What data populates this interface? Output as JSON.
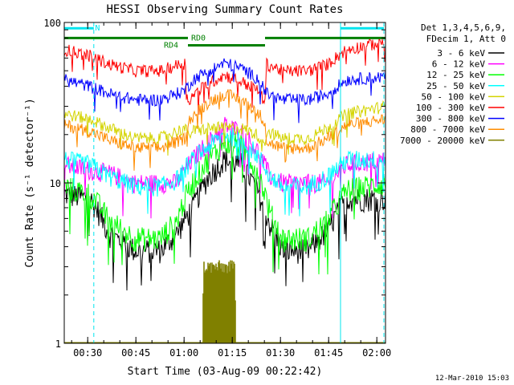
{
  "chart_data": {
    "type": "line",
    "title": "HESSI Observing Summary Count Rates",
    "xlabel": "Start Time (03-Aug-09 00:22:42)",
    "ylabel": "Count Rate (s⁻¹ detector⁻¹)",
    "y_scale": "log",
    "ylim": [
      1,
      100
    ],
    "xlim_minutes": [
      0,
      100
    ],
    "x_ticks": [
      "00:30",
      "00:45",
      "01:00",
      "01:15",
      "01:30",
      "01:45",
      "02:00"
    ],
    "x_tick_minutes": [
      7.3,
      22.3,
      37.3,
      52.3,
      67.3,
      82.3,
      97.3
    ],
    "y_ticks": [
      "1",
      "10",
      "100"
    ],
    "y_tick_values": [
      1,
      10,
      100
    ],
    "grid": false,
    "legend_position": "right",
    "legend_header": [
      "Det 1,3,4,5,6,9,",
      "FDecim 1, Att 0"
    ],
    "footer_date": "12-Mar-2010 15:03",
    "annotations": {
      "n_label": "N",
      "rd4_label": "RD4",
      "rd0_label": "RD0",
      "night_bars_minutes": [
        [
          0,
          9.2
        ],
        [
          86,
          99.5
        ]
      ],
      "night_label_minute": 9.6,
      "night_level": 92,
      "decimation_bars_minutes": [
        [
          0,
          38.5
        ],
        [
          38.5,
          62.5
        ],
        [
          62.5,
          100
        ]
      ],
      "decimation_levels": [
        80,
        72,
        80
      ],
      "rd4_label_minute": 31,
      "rd0_label_minute": 39.5,
      "saa_lines_minutes": [
        0,
        86
      ],
      "night_lines_minutes": [
        9.2,
        99.5
      ]
    },
    "colors": {
      "night": "#00e5ee",
      "decimation": "#008000",
      "axis": "#000000"
    },
    "series": [
      {
        "name": "3 - 6 keV",
        "color": "#000000",
        "points": [
          [
            0,
            8.5
          ],
          [
            8,
            8
          ],
          [
            14,
            4.8
          ],
          [
            22,
            3.8
          ],
          [
            30,
            3.8
          ],
          [
            35,
            4.8
          ],
          [
            40,
            7
          ],
          [
            45,
            11
          ],
          [
            50,
            14
          ],
          [
            55,
            13
          ],
          [
            60,
            9
          ],
          [
            64,
            5.5
          ],
          [
            68,
            3.8
          ],
          [
            76,
            3.8
          ],
          [
            82,
            5
          ],
          [
            88,
            8
          ],
          [
            100,
            8
          ]
        ]
      },
      {
        "name": "6 - 12 keV",
        "color": "#ff00ff",
        "points": [
          [
            0,
            13
          ],
          [
            8,
            12
          ],
          [
            14,
            11.5
          ],
          [
            22,
            10
          ],
          [
            30,
            10
          ],
          [
            35,
            10
          ],
          [
            40,
            14
          ],
          [
            45,
            18
          ],
          [
            50,
            23
          ],
          [
            55,
            21
          ],
          [
            60,
            16
          ],
          [
            64,
            11
          ],
          [
            68,
            10
          ],
          [
            76,
            10
          ],
          [
            82,
            10
          ],
          [
            88,
            13
          ],
          [
            100,
            14
          ]
        ]
      },
      {
        "name": "12 - 25 keV",
        "color": "#00ff00",
        "points": [
          [
            0,
            9.5
          ],
          [
            8,
            8.5
          ],
          [
            14,
            5.8
          ],
          [
            22,
            4.5
          ],
          [
            30,
            4.5
          ],
          [
            35,
            5.8
          ],
          [
            40,
            10
          ],
          [
            45,
            14
          ],
          [
            50,
            18
          ],
          [
            55,
            17
          ],
          [
            60,
            12
          ],
          [
            64,
            6.5
          ],
          [
            68,
            4.5
          ],
          [
            76,
            4.5
          ],
          [
            82,
            5.8
          ],
          [
            88,
            9
          ],
          [
            100,
            10
          ]
        ]
      },
      {
        "name": "25 - 50 keV",
        "color": "#00ffff",
        "points": [
          [
            0,
            14
          ],
          [
            8,
            13
          ],
          [
            14,
            11
          ],
          [
            22,
            9.5
          ],
          [
            30,
            9.5
          ],
          [
            35,
            10.5
          ],
          [
            40,
            14
          ],
          [
            45,
            17
          ],
          [
            50,
            20
          ],
          [
            55,
            19
          ],
          [
            60,
            15
          ],
          [
            64,
            11
          ],
          [
            68,
            9.5
          ],
          [
            76,
            9.5
          ],
          [
            82,
            11
          ],
          [
            88,
            14
          ],
          [
            100,
            14
          ]
        ]
      },
      {
        "name": "50 - 100 keV",
        "color": "#d4d400",
        "points": [
          [
            0,
            27
          ],
          [
            8,
            25
          ],
          [
            14,
            22
          ],
          [
            22,
            19
          ],
          [
            30,
            19
          ],
          [
            35,
            21
          ],
          [
            37.5,
            22
          ],
          [
            38.5,
            20
          ],
          [
            40,
            21
          ],
          [
            45,
            22
          ],
          [
            50,
            22
          ],
          [
            55,
            22
          ],
          [
            60,
            20
          ],
          [
            62.5,
            18
          ],
          [
            63,
            21
          ],
          [
            68,
            19
          ],
          [
            76,
            19
          ],
          [
            82,
            22
          ],
          [
            88,
            27
          ],
          [
            100,
            30
          ]
        ]
      },
      {
        "name": "100 - 300 keV",
        "color": "#ff0000",
        "points": [
          [
            0,
            68
          ],
          [
            8,
            62
          ],
          [
            14,
            55
          ],
          [
            22,
            50
          ],
          [
            30,
            50
          ],
          [
            35,
            54
          ],
          [
            37.5,
            56
          ],
          [
            38.5,
            32
          ],
          [
            40,
            35
          ],
          [
            45,
            42
          ],
          [
            50,
            47
          ],
          [
            55,
            43
          ],
          [
            60,
            38
          ],
          [
            62.5,
            32
          ],
          [
            63,
            55
          ],
          [
            68,
            50
          ],
          [
            76,
            50
          ],
          [
            82,
            55
          ],
          [
            88,
            68
          ],
          [
            100,
            76
          ]
        ]
      },
      {
        "name": "300 - 800 keV",
        "color": "#0000ff",
        "points": [
          [
            0,
            44
          ],
          [
            8,
            40
          ],
          [
            14,
            36
          ],
          [
            22,
            33
          ],
          [
            30,
            33
          ],
          [
            35,
            36
          ],
          [
            37.5,
            38
          ],
          [
            38.5,
            40
          ],
          [
            40,
            44
          ],
          [
            45,
            50
          ],
          [
            50,
            56
          ],
          [
            55,
            52
          ],
          [
            60,
            45
          ],
          [
            62.5,
            38
          ],
          [
            63,
            36
          ],
          [
            68,
            33
          ],
          [
            76,
            33
          ],
          [
            82,
            36
          ],
          [
            88,
            44
          ],
          [
            100,
            46
          ]
        ]
      },
      {
        "name": "800 - 7000 keV",
        "color": "#ff8c00",
        "points": [
          [
            0,
            23
          ],
          [
            8,
            21
          ],
          [
            14,
            18.5
          ],
          [
            22,
            16.5
          ],
          [
            30,
            16.5
          ],
          [
            35,
            18
          ],
          [
            37.5,
            19
          ],
          [
            38.5,
            24
          ],
          [
            40,
            26
          ],
          [
            45,
            32
          ],
          [
            50,
            36
          ],
          [
            55,
            33
          ],
          [
            60,
            28
          ],
          [
            62.5,
            24
          ],
          [
            63,
            18
          ],
          [
            68,
            16.5
          ],
          [
            76,
            16.5
          ],
          [
            82,
            19
          ],
          [
            88,
            23
          ],
          [
            100,
            25
          ]
        ]
      },
      {
        "name": "7000 - 20000 keV",
        "color": "#808000",
        "points": [
          [
            0,
            1
          ],
          [
            43,
            1
          ],
          [
            43.5,
            3
          ],
          [
            53,
            3
          ],
          [
            53.5,
            1
          ],
          [
            100,
            1
          ]
        ]
      }
    ]
  }
}
